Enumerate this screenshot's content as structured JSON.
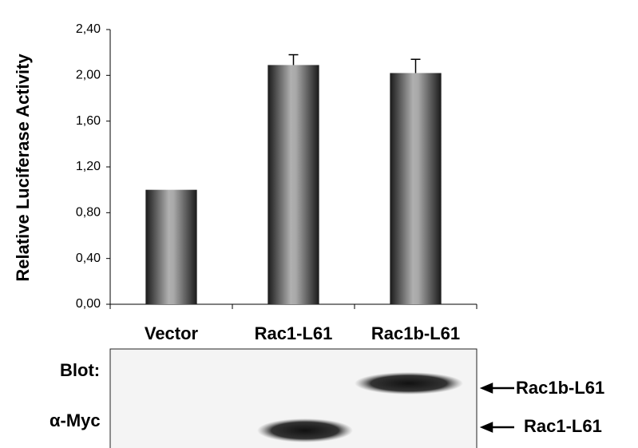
{
  "chart_data": {
    "type": "bar",
    "y_label": "Relative Luciferase Activity",
    "categories": [
      "Vector",
      "Rac1-L61",
      "Rac1b-L61"
    ],
    "values": [
      1.0,
      2.09,
      2.02
    ],
    "errors": [
      null,
      0.09,
      0.12
    ],
    "ylim": [
      0,
      2.4
    ],
    "yticks": [
      {
        "value": 0,
        "label": "0,00"
      },
      {
        "value": 0.4,
        "label": "0,40"
      },
      {
        "value": 0.8,
        "label": "0,80"
      },
      {
        "value": 1.2,
        "label": "1,20"
      },
      {
        "value": 1.6,
        "label": "1,60"
      },
      {
        "value": 2.0,
        "label": "2,00"
      },
      {
        "value": 2.4,
        "label": "2,40"
      }
    ],
    "grid": false
  },
  "blot": {
    "label_lines": [
      "Blot:",
      "α-Myc"
    ],
    "band_labels": [
      "Rac1b-L61",
      "Rac1-L61"
    ]
  }
}
